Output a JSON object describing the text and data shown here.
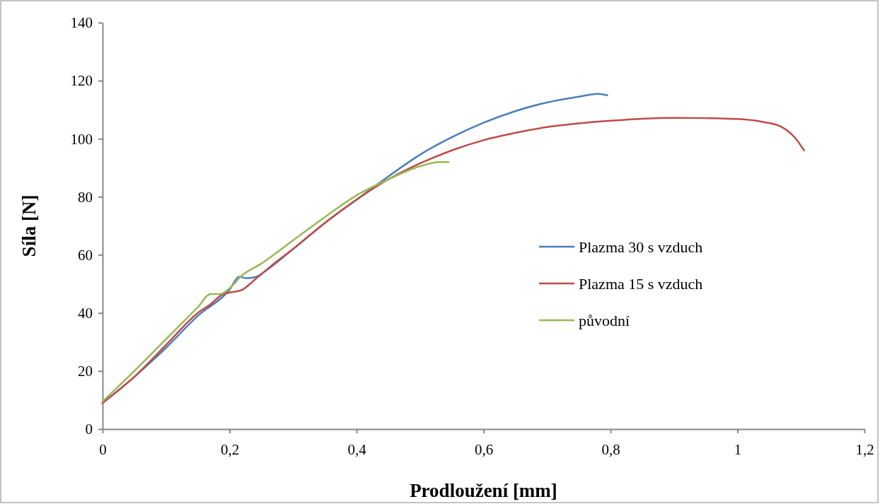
{
  "chart_data": {
    "type": "line",
    "xlabel": "Prodloužení [mm]",
    "ylabel": "Síla [N]",
    "xlim": [
      0,
      1.2
    ],
    "xticks": [
      {
        "value": 0,
        "label": "0"
      },
      {
        "value": 0.2,
        "label": "0,2"
      },
      {
        "value": 0.4,
        "label": "0,4"
      },
      {
        "value": 0.6,
        "label": "0,6"
      },
      {
        "value": 0.8,
        "label": "0,8"
      },
      {
        "value": 1,
        "label": "1"
      },
      {
        "value": 1.2,
        "label": "1,2"
      }
    ],
    "ylim": [
      0,
      140
    ],
    "yticks": [
      0,
      20,
      40,
      60,
      80,
      100,
      120,
      140
    ],
    "grid": false,
    "legend": "right",
    "marker": "none",
    "line_style": "solid",
    "series": [
      {
        "name": "Plazma 30 s vzduch",
        "color": "#4a7ebb",
        "x": [
          0,
          0.05,
          0.1,
          0.15,
          0.2,
          0.215,
          0.225,
          0.24,
          0.26,
          0.3,
          0.35,
          0.4,
          0.45,
          0.5,
          0.55,
          0.6,
          0.65,
          0.7,
          0.75,
          0.78,
          0.795
        ],
        "values": [
          9,
          18,
          28,
          39,
          48,
          52.5,
          52,
          52.3,
          55,
          62,
          71,
          79,
          87,
          94.5,
          100.5,
          105.5,
          109.5,
          112.5,
          114.5,
          115.5,
          115
        ]
      },
      {
        "name": "Plazma 15 s vzduch",
        "color": "#be4b48",
        "x": [
          0,
          0.05,
          0.1,
          0.15,
          0.17,
          0.19,
          0.2,
          0.22,
          0.24,
          0.27,
          0.3,
          0.35,
          0.4,
          0.45,
          0.5,
          0.55,
          0.6,
          0.65,
          0.7,
          0.75,
          0.8,
          0.85,
          0.9,
          0.95,
          1.0,
          1.04,
          1.07,
          1.09,
          1.105
        ],
        "values": [
          9,
          18,
          29,
          40,
          43,
          46.5,
          47,
          48,
          51.5,
          57,
          62,
          71,
          79,
          86,
          91.5,
          96,
          99.5,
          102,
          104,
          105.3,
          106.2,
          106.9,
          107.2,
          107.1,
          106.8,
          105.8,
          104,
          100.5,
          96
        ]
      },
      {
        "name": "původní",
        "color": "#98b954",
        "x": [
          0,
          0.05,
          0.1,
          0.15,
          0.17,
          0.185,
          0.2,
          0.22,
          0.25,
          0.3,
          0.35,
          0.4,
          0.45,
          0.5,
          0.53,
          0.545
        ],
        "values": [
          9.5,
          20,
          31,
          42,
          46.5,
          46.5,
          48.5,
          53,
          57,
          65,
          73,
          80.5,
          86,
          90.5,
          92,
          92
        ]
      }
    ]
  }
}
